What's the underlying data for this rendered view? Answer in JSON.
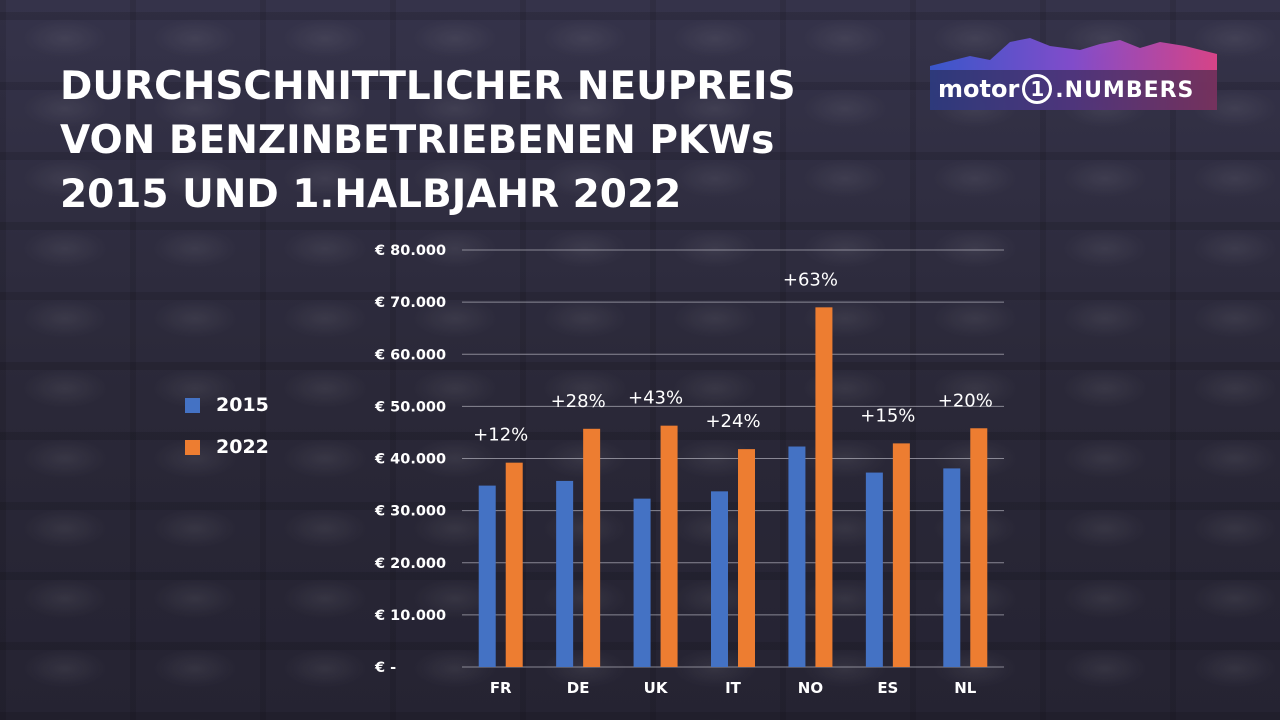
{
  "title_lines": [
    "DURCHSCHNITTLICHER NEUPREIS",
    "VON BENZINBETRIEBENEN PKWs",
    "2015 UND 1.HALBJAHR 2022"
  ],
  "logo": {
    "word": "motor",
    "badge": "1",
    "suffix": ".NUMBERS"
  },
  "colors": {
    "series_2015": "#4472c4",
    "series_2022": "#ed7d31",
    "gridline": "#a9a8b3",
    "text": "#ffffff"
  },
  "chart_data": {
    "type": "bar",
    "title": "DURCHSCHNITTLICHER NEUPREIS VON BENZINBETRIEBENEN PKWs 2015 UND 1.HALBJAHR 2022",
    "categories": [
      "FR",
      "DE",
      "UK",
      "IT",
      "NO",
      "ES",
      "NL"
    ],
    "series": [
      {
        "name": "2015",
        "values": [
          34800,
          35700,
          32300,
          33700,
          42300,
          37300,
          38100
        ]
      },
      {
        "name": "2022",
        "values": [
          39200,
          45700,
          46300,
          41800,
          69000,
          42900,
          45800
        ]
      }
    ],
    "annotations": [
      "+12%",
      "+28%",
      "+43%",
      "+24%",
      "+63%",
      "+15%",
      "+20%"
    ],
    "ylim": [
      0,
      80000
    ],
    "yticks": [
      0,
      10000,
      20000,
      30000,
      40000,
      50000,
      60000,
      70000,
      80000
    ],
    "ytick_labels": [
      "€ -",
      "€ 10.000",
      "€ 20.000",
      "€ 30.000",
      "€ 40.000",
      "€ 50.000",
      "€ 60.000",
      "€ 70.000",
      "€ 80.000"
    ],
    "xlabel": "",
    "ylabel": "",
    "grid": "horizontal",
    "legend_position": "left"
  }
}
